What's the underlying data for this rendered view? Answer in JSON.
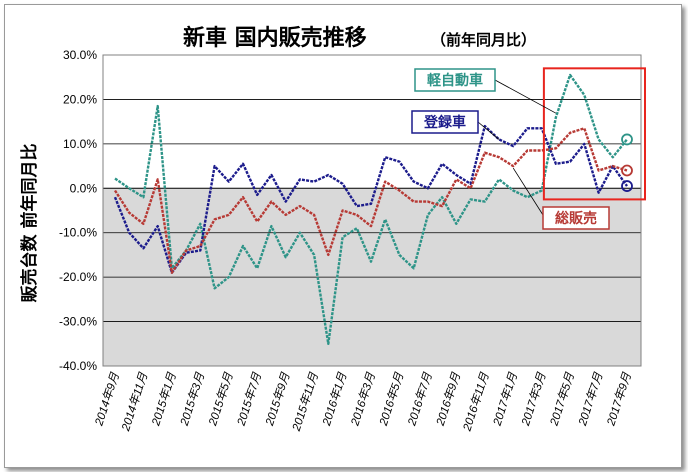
{
  "chart_data": {
    "type": "line",
    "title": "新車 国内販売推移",
    "subtitle": "（前年同月比）",
    "ylabel": "販売台数 前年同月比",
    "ylim": [
      -40,
      30
    ],
    "yticks": [
      "30.0%",
      "20.0%",
      "10.0%",
      "0.0%",
      "-10.0%",
      "-20.0%",
      "-30.0%",
      "-40.0%"
    ],
    "xtick_labels": [
      "2014年9月",
      "2014年11月",
      "2015年1月",
      "2015年3月",
      "2015年5月",
      "2015年7月",
      "2015年9月",
      "2015年11月",
      "2016年1月",
      "2016年3月",
      "2016年5月",
      "2016年7月",
      "2016年9月",
      "2016年11月",
      "2017年1月",
      "2017年3月",
      "2017年5月",
      "2017年7月",
      "2017年9月"
    ],
    "categories": [
      "2014年9月",
      "2014年10月",
      "2014年11月",
      "2014年12月",
      "2015年1月",
      "2015年2月",
      "2015年3月",
      "2015年4月",
      "2015年5月",
      "2015年6月",
      "2015年7月",
      "2015年8月",
      "2015年9月",
      "2015年10月",
      "2015年11月",
      "2015年12月",
      "2016年1月",
      "2016年2月",
      "2016年3月",
      "2016年4月",
      "2016年5月",
      "2016年6月",
      "2016年7月",
      "2016年8月",
      "2016年9月",
      "2016年10月",
      "2016年11月",
      "2016年12月",
      "2017年1月",
      "2017年2月",
      "2017年3月",
      "2017年4月",
      "2017年5月",
      "2017年6月",
      "2017年7月",
      "2017年8月",
      "2017年9月"
    ],
    "series": [
      {
        "name": "軽自動車",
        "color": "#2e9488",
        "values": [
          2.2,
          0.0,
          -2.0,
          18.5,
          -18.0,
          -14.0,
          -8.0,
          -22.5,
          -20.0,
          -13.0,
          -18.0,
          -8.5,
          -15.5,
          -10.0,
          -15.0,
          -35.0,
          -11.0,
          -9.0,
          -16.5,
          -7.0,
          -15.0,
          -18.0,
          -6.0,
          -2.0,
          -8.0,
          -2.5,
          -3.0,
          2.0,
          -0.5,
          -2.0,
          -0.5,
          16.0,
          25.5,
          21.0,
          11.0,
          7.0,
          11.0
        ]
      },
      {
        "name": "登録車",
        "color": "#1c1c8c",
        "values": [
          -2.0,
          -10.0,
          -13.5,
          -8.5,
          -19.0,
          -14.5,
          -14.0,
          5.0,
          1.5,
          5.5,
          -1.5,
          3.0,
          -3.0,
          2.0,
          1.5,
          3.0,
          1.0,
          -4.0,
          -3.5,
          7.0,
          6.0,
          1.5,
          0.0,
          5.5,
          3.0,
          1.0,
          14.0,
          11.0,
          9.5,
          13.5,
          13.5,
          5.5,
          6.0,
          10.0,
          -1.0,
          5.0,
          0.5
        ]
      },
      {
        "name": "総販売",
        "color": "#b73a35",
        "values": [
          -0.5,
          -5.5,
          -8.0,
          2.0,
          -19.0,
          -14.0,
          -13.0,
          -7.0,
          -6.0,
          -2.0,
          -7.5,
          -3.0,
          -6.0,
          -4.0,
          -6.0,
          -15.0,
          -5.0,
          -6.0,
          -8.5,
          1.5,
          -0.5,
          -3.0,
          -3.0,
          -4.0,
          2.0,
          0.0,
          8.0,
          7.0,
          5.0,
          8.5,
          8.5,
          9.0,
          12.5,
          13.5,
          4.0,
          5.0,
          4.0
        ]
      }
    ],
    "grid": true,
    "legend": "inline labels"
  }
}
